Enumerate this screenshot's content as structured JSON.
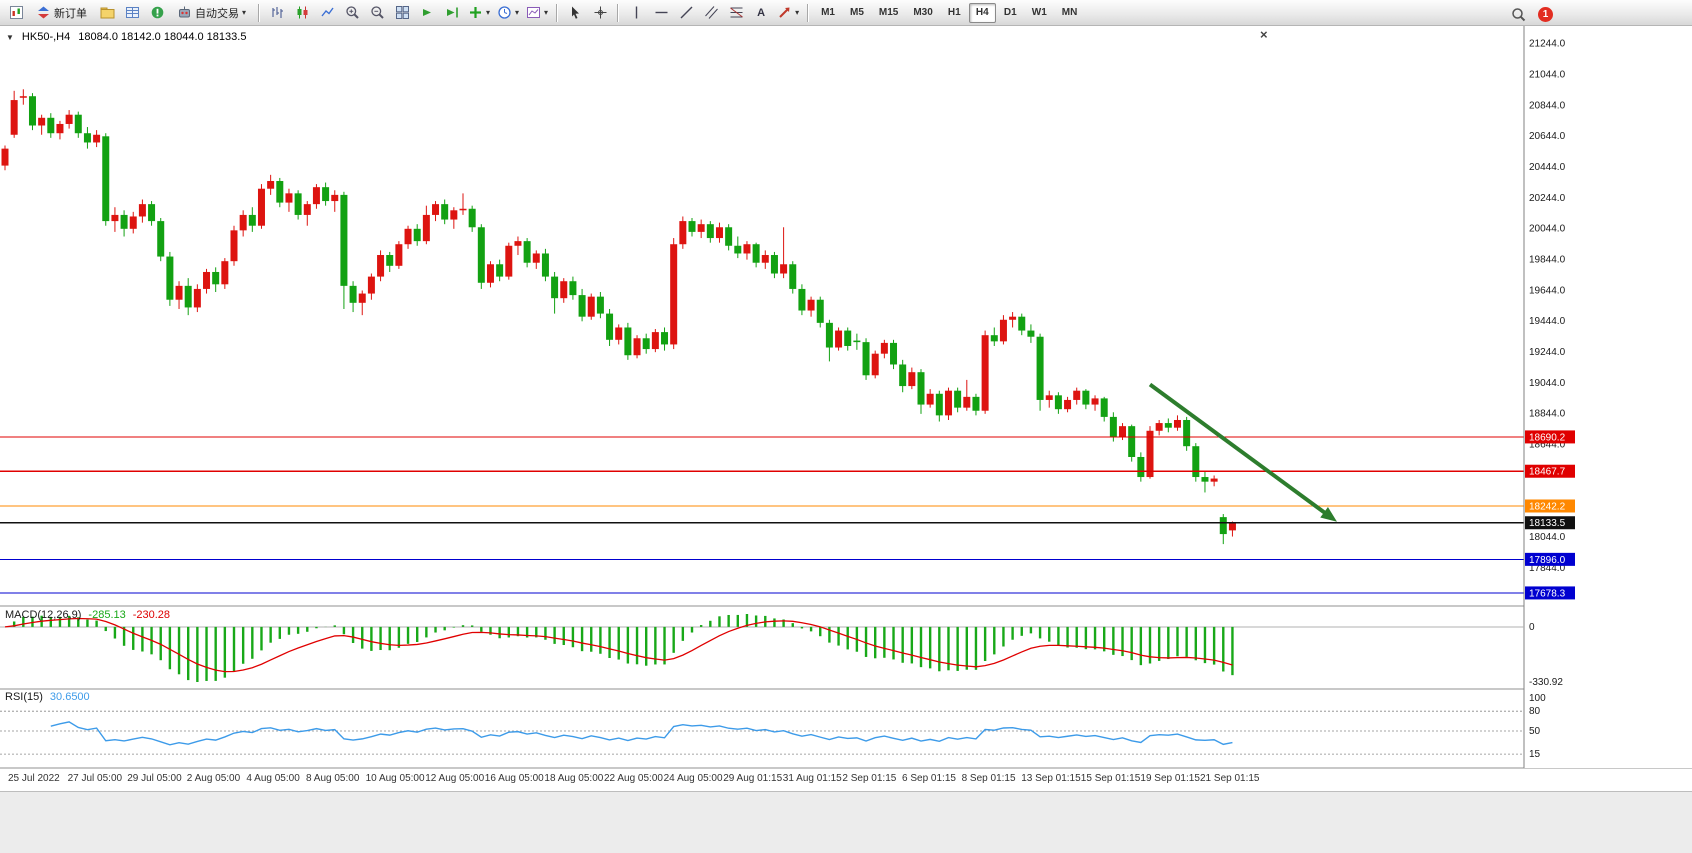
{
  "glyphs": {
    "caret": "▾",
    "close": "×",
    "title_triangle": "▼",
    "text_tool": "A"
  },
  "toolbar": {
    "new_order_label": "新订单",
    "auto_trading_label": "自动交易",
    "timeframes": [
      "M1",
      "M5",
      "M15",
      "M30",
      "H1",
      "H4",
      "D1",
      "W1",
      "MN"
    ],
    "active_timeframe": "H4",
    "notification_count": "1",
    "icon_names": [
      "new-chart",
      "new-order",
      "profiles",
      "market-watch",
      "data-window",
      "auto-trading",
      "bar-chart",
      "candlestick-chart",
      "line-chart",
      "zoom-in",
      "zoom-out",
      "tile-windows",
      "auto-scroll",
      "chart-shift",
      "indicators",
      "periods",
      "templates",
      "cursor",
      "crosshair",
      "vertical-line",
      "horizontal-line",
      "trendline",
      "channel",
      "fibonacci",
      "text",
      "arrows",
      "search",
      "notification"
    ]
  },
  "chart": {
    "title_symbol": "HK50-,H4",
    "title_ohlc": "18084.0 18142.0 18044.0 18133.5"
  },
  "chart_data": {
    "type": "candlestick",
    "symbol": "HK50-",
    "period": "H4",
    "current_ohlc": {
      "open": 18084.0,
      "high": 18142.0,
      "low": 18044.0,
      "close": 18133.5
    },
    "colors": {
      "up": "#dd1410",
      "down": "#12a112",
      "arrow": "#2d7d2d"
    },
    "price_axis": {
      "min": 17600,
      "max": 21310,
      "ticks": [
        21244,
        21044,
        20844,
        20644,
        20444,
        20244,
        20044,
        19844,
        19644,
        19444,
        19244,
        19044,
        18844,
        18644,
        18444,
        18244,
        18044,
        17844,
        17644
      ]
    },
    "hlines": [
      {
        "price": 18690.2,
        "color": "#e00000",
        "label": "18690.2"
      },
      {
        "price": 18467.7,
        "color": "#e00000",
        "label": "18467.7"
      },
      {
        "price": 18242.2,
        "color": "#ff8800",
        "label": "18242.2"
      },
      {
        "price": 18133.5,
        "color": "#101010",
        "label": "18133.5"
      },
      {
        "price": 17896.0,
        "color": "#0000d0",
        "label": "17896.0"
      },
      {
        "price": 17678.3,
        "color": "#0000d0",
        "label": "17678.3"
      }
    ],
    "arrow": {
      "from": {
        "x_frac": 0.7546,
        "price": 19030
      },
      "to": {
        "x_frac": 0.8773,
        "price": 18140
      }
    },
    "candles": [
      [
        20450,
        20580,
        20420,
        20560
      ],
      [
        20650,
        20935,
        20630,
        20875
      ],
      [
        20890,
        20945,
        20845,
        20900
      ],
      [
        20900,
        20920,
        20680,
        20710
      ],
      [
        20710,
        20780,
        20650,
        20760
      ],
      [
        20760,
        20790,
        20630,
        20660
      ],
      [
        20660,
        20740,
        20620,
        20720
      ],
      [
        20720,
        20810,
        20690,
        20780
      ],
      [
        20780,
        20800,
        20630,
        20660
      ],
      [
        20660,
        20700,
        20560,
        20600
      ],
      [
        20600,
        20680,
        20570,
        20650
      ],
      [
        20640,
        20660,
        20060,
        20090
      ],
      [
        20090,
        20180,
        20020,
        20130
      ],
      [
        20130,
        20160,
        19990,
        20040
      ],
      [
        20040,
        20150,
        20010,
        20120
      ],
      [
        20120,
        20230,
        20080,
        20200
      ],
      [
        20200,
        20220,
        20060,
        20090
      ],
      [
        20090,
        20110,
        19830,
        19860
      ],
      [
        19860,
        19890,
        19540,
        19580
      ],
      [
        19580,
        19700,
        19520,
        19670
      ],
      [
        19670,
        19720,
        19480,
        19530
      ],
      [
        19530,
        19680,
        19500,
        19650
      ],
      [
        19650,
        19780,
        19620,
        19760
      ],
      [
        19760,
        19790,
        19630,
        19680
      ],
      [
        19680,
        19850,
        19650,
        19830
      ],
      [
        19830,
        20060,
        19800,
        20030
      ],
      [
        20030,
        20160,
        19990,
        20130
      ],
      [
        20130,
        20180,
        20020,
        20060
      ],
      [
        20060,
        20330,
        20040,
        20300
      ],
      [
        20300,
        20390,
        20260,
        20350
      ],
      [
        20350,
        20370,
        20180,
        20210
      ],
      [
        20210,
        20300,
        20150,
        20270
      ],
      [
        20270,
        20290,
        20100,
        20130
      ],
      [
        20130,
        20220,
        20060,
        20200
      ],
      [
        20200,
        20330,
        20170,
        20310
      ],
      [
        20310,
        20340,
        20190,
        20220
      ],
      [
        20220,
        20290,
        20150,
        20260
      ],
      [
        20260,
        20280,
        19520,
        19670
      ],
      [
        19670,
        19700,
        19500,
        19560
      ],
      [
        19560,
        19640,
        19480,
        19620
      ],
      [
        19620,
        19750,
        19580,
        19730
      ],
      [
        19730,
        19900,
        19700,
        19870
      ],
      [
        19870,
        19890,
        19760,
        19800
      ],
      [
        19800,
        19960,
        19780,
        19940
      ],
      [
        19940,
        20060,
        19910,
        20040
      ],
      [
        20040,
        20070,
        19930,
        19960
      ],
      [
        19960,
        20190,
        19940,
        20130
      ],
      [
        20130,
        20220,
        20090,
        20200
      ],
      [
        20200,
        20230,
        20070,
        20100
      ],
      [
        20100,
        20180,
        20040,
        20160
      ],
      [
        20160,
        20270,
        20130,
        20170
      ],
      [
        20170,
        20190,
        20020,
        20050
      ],
      [
        20050,
        20070,
        19650,
        19690
      ],
      [
        19690,
        19830,
        19660,
        19810
      ],
      [
        19810,
        19840,
        19700,
        19730
      ],
      [
        19730,
        19950,
        19710,
        19930
      ],
      [
        19930,
        19990,
        19870,
        19960
      ],
      [
        19960,
        19980,
        19790,
        19820
      ],
      [
        19820,
        19900,
        19780,
        19880
      ],
      [
        19880,
        19910,
        19700,
        19730
      ],
      [
        19730,
        19760,
        19490,
        19590
      ],
      [
        19590,
        19720,
        19560,
        19700
      ],
      [
        19700,
        19730,
        19580,
        19610
      ],
      [
        19610,
        19650,
        19440,
        19470
      ],
      [
        19470,
        19620,
        19450,
        19600
      ],
      [
        19600,
        19630,
        19460,
        19490
      ],
      [
        19490,
        19520,
        19280,
        19320
      ],
      [
        19320,
        19420,
        19290,
        19400
      ],
      [
        19400,
        19430,
        19190,
        19220
      ],
      [
        19220,
        19350,
        19200,
        19330
      ],
      [
        19330,
        19360,
        19230,
        19260
      ],
      [
        19260,
        19390,
        19240,
        19370
      ],
      [
        19370,
        19400,
        19250,
        19290
      ],
      [
        19290,
        19980,
        19260,
        19940
      ],
      [
        19940,
        20120,
        19910,
        20090
      ],
      [
        20090,
        20110,
        19990,
        20020
      ],
      [
        20020,
        20100,
        19980,
        20070
      ],
      [
        20070,
        20090,
        19950,
        19980
      ],
      [
        19980,
        20080,
        19950,
        20050
      ],
      [
        20050,
        20070,
        19900,
        19930
      ],
      [
        19930,
        19990,
        19850,
        19880
      ],
      [
        19880,
        19960,
        19840,
        19940
      ],
      [
        19940,
        19950,
        19790,
        19820
      ],
      [
        19820,
        19900,
        19780,
        19870
      ],
      [
        19870,
        19890,
        19720,
        19750
      ],
      [
        19750,
        20050,
        19720,
        19810
      ],
      [
        19810,
        19830,
        19620,
        19650
      ],
      [
        19650,
        19680,
        19480,
        19510
      ],
      [
        19510,
        19600,
        19470,
        19580
      ],
      [
        19580,
        19600,
        19400,
        19430
      ],
      [
        19430,
        19450,
        19180,
        19270
      ],
      [
        19270,
        19400,
        19250,
        19380
      ],
      [
        19380,
        19400,
        19250,
        19280
      ],
      [
        19315,
        19360,
        19255,
        19305
      ],
      [
        19305,
        19330,
        19060,
        19090
      ],
      [
        19090,
        19250,
        19070,
        19230
      ],
      [
        19230,
        19320,
        19200,
        19300
      ],
      [
        19300,
        19320,
        19130,
        19160
      ],
      [
        19160,
        19190,
        18980,
        19020
      ],
      [
        19020,
        19140,
        19000,
        19110
      ],
      [
        19110,
        19130,
        18840,
        18900
      ],
      [
        18900,
        19000,
        18880,
        18970
      ],
      [
        18970,
        18990,
        18790,
        18830
      ],
      [
        18830,
        19010,
        18800,
        18990
      ],
      [
        18990,
        19010,
        18850,
        18880
      ],
      [
        18880,
        19060,
        18860,
        18950
      ],
      [
        18950,
        18970,
        18830,
        18860
      ],
      [
        18860,
        19380,
        18840,
        19350
      ],
      [
        19350,
        19400,
        19280,
        19310
      ],
      [
        19310,
        19480,
        19290,
        19450
      ],
      [
        19450,
        19500,
        19400,
        19470
      ],
      [
        19470,
        19490,
        19350,
        19380
      ],
      [
        19380,
        19420,
        19300,
        19340
      ],
      [
        19340,
        19360,
        18860,
        18930
      ],
      [
        18930,
        18990,
        18880,
        18960
      ],
      [
        18960,
        18980,
        18840,
        18870
      ],
      [
        18870,
        18950,
        18850,
        18930
      ],
      [
        18930,
        19010,
        18900,
        18990
      ],
      [
        18990,
        19000,
        18870,
        18900
      ],
      [
        18900,
        18960,
        18860,
        18940
      ],
      [
        18940,
        18950,
        18790,
        18820
      ],
      [
        18820,
        18850,
        18660,
        18690
      ],
      [
        18690,
        18780,
        18670,
        18760
      ],
      [
        18760,
        18770,
        18530,
        18560
      ],
      [
        18560,
        18590,
        18400,
        18430
      ],
      [
        18430,
        18760,
        18420,
        18730
      ],
      [
        18730,
        18800,
        18700,
        18780
      ],
      [
        18780,
        18810,
        18720,
        18750
      ],
      [
        18750,
        18830,
        18730,
        18800
      ],
      [
        18800,
        18820,
        18600,
        18630
      ],
      [
        18630,
        18650,
        18400,
        18430
      ],
      [
        18430,
        18470,
        18330,
        18400
      ],
      [
        18400,
        18440,
        18370,
        18420
      ],
      [
        18170,
        18190,
        17995,
        18060
      ],
      [
        18084,
        18142,
        18044,
        18133.5
      ]
    ],
    "indicators": {
      "macd": {
        "name": "MACD(12,26,9)",
        "fast": 12,
        "slow": 26,
        "signal": 9,
        "value_main": "-285.13",
        "value_signal": "-230.28",
        "axis_zero_label": "0",
        "axis_min_label": "-330.92",
        "histogram_color": "#18a818",
        "signal_color": "#e00000"
      },
      "rsi": {
        "name": "RSI(15)",
        "period": 15,
        "value": "30.6500",
        "levels": [
          80,
          50,
          15
        ],
        "axis_values": [
          100,
          80,
          50,
          15
        ],
        "axis_labels": [
          "100",
          "80",
          "50",
          "15"
        ],
        "line_color": "#3d9be9"
      }
    },
    "time_axis": [
      "25 Jul 2022",
      "27 Jul 05:00",
      "29 Jul 05:00",
      "2 Aug 05:00",
      "4 Aug 05:00",
      "8 Aug 05:00",
      "10 Aug 05:00",
      "12 Aug 05:00",
      "16 Aug 05:00",
      "18 Aug 05:00",
      "22 Aug 05:00",
      "24 Aug 05:00",
      "29 Aug 01:15",
      "31 Aug 01:15",
      "2 Sep 01:15",
      "6 Sep 01:15",
      "8 Sep 01:15",
      "13 Sep 01:15",
      "15 Sep 01:15",
      "19 Sep 01:15",
      "21 Sep 01:15"
    ]
  }
}
